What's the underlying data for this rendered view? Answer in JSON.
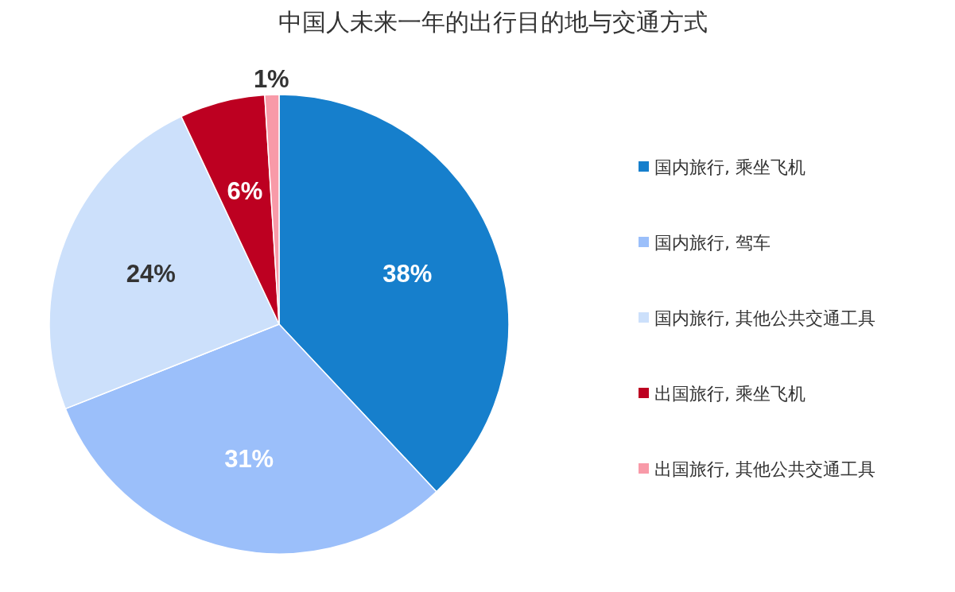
{
  "chart_data": {
    "type": "pie",
    "title": "中国人未来一年的出行目的地与交通方式",
    "categories": [
      "国内旅行, 乘坐飞机",
      "国内旅行, 驾车",
      "国内旅行, 其他公共交通工具",
      "出国旅行, 乘坐飞机",
      "出国旅行, 其他公共交通工具"
    ],
    "values": [
      38,
      31,
      24,
      6,
      1
    ],
    "colors": [
      "#167fcc",
      "#9bbffa",
      "#cce0fb",
      "#bd0021",
      "#f89aa8"
    ],
    "value_labels": [
      "38%",
      "31%",
      "24%",
      "6%",
      "1%"
    ],
    "legend": "right"
  }
}
